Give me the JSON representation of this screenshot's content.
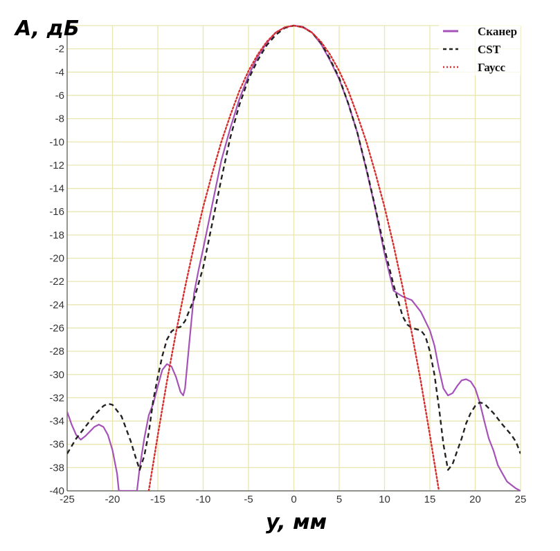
{
  "chart_data": {
    "type": "line",
    "xlabel": "y, мм",
    "ylabel": "A, дБ",
    "xlim": [
      -25,
      25
    ],
    "ylim": [
      -40,
      0
    ],
    "x_ticks": [
      -25,
      -20,
      -15,
      -10,
      -5,
      0,
      5,
      10,
      15,
      20,
      25
    ],
    "y_ticks": [
      -2,
      -4,
      -6,
      -8,
      -10,
      -12,
      -14,
      -16,
      -18,
      -20,
      -22,
      -24,
      -26,
      -28,
      -30,
      -32,
      -34,
      -36,
      -38,
      -40
    ],
    "grid": true,
    "legend_position": "top-right",
    "series": [
      {
        "name": "Сканер",
        "color": "#a452b8",
        "style": "solid",
        "points": [
          [
            -25,
            -33.2
          ],
          [
            -24.5,
            -34.3
          ],
          [
            -24,
            -35.2
          ],
          [
            -23.5,
            -35.6
          ],
          [
            -23,
            -35.3
          ],
          [
            -22.5,
            -34.9
          ],
          [
            -22,
            -34.5
          ],
          [
            -21.5,
            -34.3
          ],
          [
            -21,
            -34.5
          ],
          [
            -20.5,
            -35.2
          ],
          [
            -20,
            -36.5
          ],
          [
            -19.5,
            -38.5
          ],
          [
            -19.3,
            -40
          ],
          [
            -17.3,
            -40
          ],
          [
            -17,
            -38
          ],
          [
            -16.5,
            -35.5
          ],
          [
            -16,
            -33.5
          ],
          [
            -15.5,
            -32.5
          ],
          [
            -15,
            -31
          ],
          [
            -14.5,
            -29.6
          ],
          [
            -14,
            -29.1
          ],
          [
            -13.5,
            -29.3
          ],
          [
            -13,
            -30.2
          ],
          [
            -12.5,
            -31.5
          ],
          [
            -12.2,
            -31.8
          ],
          [
            -12,
            -31.2
          ],
          [
            -11.5,
            -27
          ],
          [
            -11,
            -23
          ],
          [
            -10.5,
            -21
          ],
          [
            -10,
            -19.2
          ],
          [
            -9,
            -15.4
          ],
          [
            -8,
            -11.6
          ],
          [
            -7,
            -8.8
          ],
          [
            -6,
            -6.3
          ],
          [
            -5,
            -4.3
          ],
          [
            -4,
            -2.7
          ],
          [
            -3,
            -1.5
          ],
          [
            -2,
            -0.6
          ],
          [
            -1,
            -0.15
          ],
          [
            0,
            0
          ],
          [
            1,
            -0.1
          ],
          [
            2,
            -0.6
          ],
          [
            3,
            -1.6
          ],
          [
            4,
            -3.0
          ],
          [
            5,
            -4.6
          ],
          [
            6,
            -6.7
          ],
          [
            7,
            -9.2
          ],
          [
            8,
            -12.4
          ],
          [
            9,
            -15.8
          ],
          [
            10,
            -19.6
          ],
          [
            11,
            -22.8
          ],
          [
            12,
            -23.3
          ],
          [
            13,
            -23.6
          ],
          [
            14,
            -24.6
          ],
          [
            15,
            -26.2
          ],
          [
            15.5,
            -27.5
          ],
          [
            16,
            -29.5
          ],
          [
            16.5,
            -31.2
          ],
          [
            17,
            -31.8
          ],
          [
            17.5,
            -31.6
          ],
          [
            18,
            -31
          ],
          [
            18.5,
            -30.5
          ],
          [
            19,
            -30.4
          ],
          [
            19.5,
            -30.6
          ],
          [
            20,
            -31.2
          ],
          [
            20.5,
            -32.4
          ],
          [
            21,
            -34
          ],
          [
            21.5,
            -35.5
          ],
          [
            22,
            -36.5
          ],
          [
            22.5,
            -37.8
          ],
          [
            23,
            -38.5
          ],
          [
            23.5,
            -39.2
          ],
          [
            24,
            -39.5
          ],
          [
            24.5,
            -39.8
          ],
          [
            25,
            -40
          ]
        ]
      },
      {
        "name": "CST",
        "color": "#222222",
        "style": "dashed",
        "points": [
          [
            -25,
            -36.8
          ],
          [
            -24,
            -35.5
          ],
          [
            -23,
            -34.5
          ],
          [
            -22,
            -33.5
          ],
          [
            -21,
            -32.7
          ],
          [
            -20.5,
            -32.5
          ],
          [
            -20,
            -32.6
          ],
          [
            -19,
            -33.6
          ],
          [
            -18,
            -35.7
          ],
          [
            -17.5,
            -37
          ],
          [
            -17,
            -38.2
          ],
          [
            -16.5,
            -37
          ],
          [
            -16,
            -35
          ],
          [
            -15.5,
            -32.2
          ],
          [
            -15,
            -30.2
          ],
          [
            -14.5,
            -28.4
          ],
          [
            -14,
            -27
          ],
          [
            -13.5,
            -26.3
          ],
          [
            -13,
            -26
          ],
          [
            -12.5,
            -25.9
          ],
          [
            -12,
            -25.4
          ],
          [
            -11,
            -23.5
          ],
          [
            -10,
            -20.8
          ],
          [
            -9,
            -17
          ],
          [
            -8,
            -13.2
          ],
          [
            -7,
            -9.6
          ],
          [
            -6,
            -6.8
          ],
          [
            -5,
            -4.6
          ],
          [
            -4,
            -3.0
          ],
          [
            -3,
            -1.7
          ],
          [
            -2,
            -0.8
          ],
          [
            -1,
            -0.2
          ],
          [
            0,
            0
          ],
          [
            1,
            -0.15
          ],
          [
            2,
            -0.6
          ],
          [
            3,
            -1.5
          ],
          [
            4,
            -2.9
          ],
          [
            5,
            -4.5
          ],
          [
            6,
            -6.7
          ],
          [
            7,
            -9.2
          ],
          [
            8,
            -12.3
          ],
          [
            9,
            -15.7
          ],
          [
            10,
            -19.2
          ],
          [
            11,
            -22.3
          ],
          [
            12,
            -25
          ],
          [
            12.5,
            -25.7
          ],
          [
            13,
            -26
          ],
          [
            14,
            -26.2
          ],
          [
            14.5,
            -26.7
          ],
          [
            15,
            -28
          ],
          [
            15.5,
            -30
          ],
          [
            16,
            -32.8
          ],
          [
            16.5,
            -36
          ],
          [
            17,
            -38.2
          ],
          [
            17.5,
            -37.7
          ],
          [
            18,
            -36.6
          ],
          [
            18.5,
            -35.5
          ],
          [
            19,
            -34.2
          ],
          [
            19.5,
            -33.3
          ],
          [
            20,
            -32.7
          ],
          [
            20.5,
            -32.4
          ],
          [
            21,
            -32.5
          ],
          [
            22,
            -33.3
          ],
          [
            23,
            -34.3
          ],
          [
            24,
            -35.2
          ],
          [
            24.5,
            -35.8
          ],
          [
            25,
            -36.8
          ]
        ]
      },
      {
        "name": "Гаусс",
        "color": "#d92b2b",
        "style": "dotted",
        "points": [
          [
            -16,
            -40
          ],
          [
            -15,
            -35.2
          ],
          [
            -14,
            -30.6
          ],
          [
            -13,
            -26.4
          ],
          [
            -12,
            -22.5
          ],
          [
            -11,
            -18.9
          ],
          [
            -10,
            -15.6
          ],
          [
            -9,
            -12.7
          ],
          [
            -8,
            -10
          ],
          [
            -7,
            -7.7
          ],
          [
            -6,
            -5.6
          ],
          [
            -5,
            -3.9
          ],
          [
            -4,
            -2.5
          ],
          [
            -3,
            -1.4
          ],
          [
            -2,
            -0.6
          ],
          [
            -1,
            -0.15
          ],
          [
            0,
            0
          ],
          [
            1,
            -0.15
          ],
          [
            2,
            -0.6
          ],
          [
            3,
            -1.4
          ],
          [
            4,
            -2.5
          ],
          [
            5,
            -3.9
          ],
          [
            6,
            -5.6
          ],
          [
            7,
            -7.7
          ],
          [
            8,
            -10
          ],
          [
            9,
            -12.7
          ],
          [
            10,
            -15.6
          ],
          [
            11,
            -18.9
          ],
          [
            12,
            -22.5
          ],
          [
            13,
            -26.4
          ],
          [
            14,
            -30.6
          ],
          [
            15,
            -35.2
          ],
          [
            16,
            -40
          ]
        ]
      }
    ]
  }
}
